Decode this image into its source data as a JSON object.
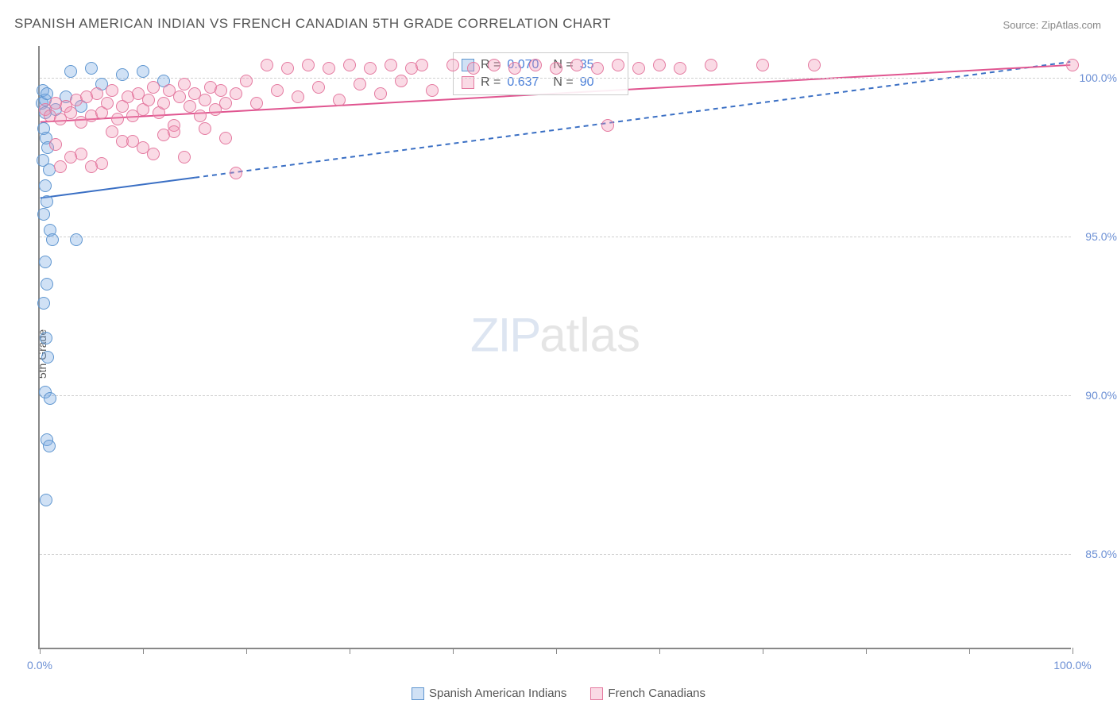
{
  "title": "SPANISH AMERICAN INDIAN VS FRENCH CANADIAN 5TH GRADE CORRELATION CHART",
  "source": "Source: ZipAtlas.com",
  "y_axis_title": "5th Grade",
  "watermark": {
    "zip": "ZIP",
    "atlas": "atlas"
  },
  "chart": {
    "type": "scatter",
    "background_color": "#ffffff",
    "grid_color": "#d0d0d0",
    "axis_color": "#888888",
    "xlim": [
      0,
      100
    ],
    "ylim": [
      82,
      101
    ],
    "x_ticks": [
      0,
      10,
      20,
      30,
      40,
      50,
      60,
      70,
      80,
      90,
      100
    ],
    "x_tick_labels": {
      "0": "0.0%",
      "100": "100.0%"
    },
    "y_ticks": [
      85,
      90,
      95,
      100
    ],
    "y_tick_labels": {
      "85": "85.0%",
      "90": "90.0%",
      "95": "95.0%",
      "100": "100.0%"
    },
    "label_fontsize": 14,
    "label_color": "#6b8fd4",
    "marker_radius": 8,
    "marker_stroke_width": 1.5,
    "series": [
      {
        "name": "Spanish American Indians",
        "fill": "rgba(120,170,225,0.35)",
        "stroke": "#5f96d0",
        "r_value": "0.070",
        "n_value": "35",
        "trend": {
          "x1": 0,
          "y1": 96.2,
          "solid_until_x": 15,
          "x2": 100,
          "y2": 100.5,
          "color": "#3a6fc4",
          "width": 2
        },
        "points": [
          [
            0.2,
            99.2
          ],
          [
            0.3,
            99.6
          ],
          [
            0.5,
            99.3
          ],
          [
            0.7,
            99.5
          ],
          [
            0.5,
            98.9
          ],
          [
            0.4,
            98.4
          ],
          [
            0.6,
            98.1
          ],
          [
            0.8,
            97.8
          ],
          [
            0.3,
            97.4
          ],
          [
            0.9,
            97.1
          ],
          [
            0.5,
            96.6
          ],
          [
            0.7,
            96.1
          ],
          [
            0.4,
            95.7
          ],
          [
            1.0,
            95.2
          ],
          [
            1.2,
            94.9
          ],
          [
            0.5,
            94.2
          ],
          [
            0.7,
            93.5
          ],
          [
            0.4,
            92.9
          ],
          [
            0.6,
            91.8
          ],
          [
            0.8,
            91.2
          ],
          [
            0.5,
            90.1
          ],
          [
            1.0,
            89.9
          ],
          [
            0.7,
            88.6
          ],
          [
            0.9,
            88.4
          ],
          [
            0.6,
            86.7
          ],
          [
            3.0,
            100.2
          ],
          [
            5.0,
            100.3
          ],
          [
            2.5,
            99.4
          ],
          [
            4.0,
            99.1
          ],
          [
            6.0,
            99.8
          ],
          [
            8.0,
            100.1
          ],
          [
            3.5,
            94.9
          ],
          [
            10.0,
            100.2
          ],
          [
            12.0,
            99.9
          ],
          [
            1.5,
            99.0
          ]
        ]
      },
      {
        "name": "French Canadians",
        "fill": "rgba(240,150,180,0.35)",
        "stroke": "#e47aa0",
        "r_value": "0.637",
        "n_value": "90",
        "trend": {
          "x1": 0,
          "y1": 98.6,
          "solid_until_x": 100,
          "x2": 100,
          "y2": 100.4,
          "color": "#e05590",
          "width": 2
        },
        "points": [
          [
            0.5,
            99.0
          ],
          [
            1.0,
            98.8
          ],
          [
            1.5,
            99.2
          ],
          [
            2.0,
            98.7
          ],
          [
            2.5,
            99.1
          ],
          [
            3.0,
            98.9
          ],
          [
            3.5,
            99.3
          ],
          [
            4.0,
            98.6
          ],
          [
            4.5,
            99.4
          ],
          [
            5.0,
            98.8
          ],
          [
            5.5,
            99.5
          ],
          [
            6.0,
            98.9
          ],
          [
            6.5,
            99.2
          ],
          [
            7.0,
            99.6
          ],
          [
            7.5,
            98.7
          ],
          [
            8.0,
            99.1
          ],
          [
            8.5,
            99.4
          ],
          [
            9.0,
            98.8
          ],
          [
            9.5,
            99.5
          ],
          [
            10.0,
            99.0
          ],
          [
            10.5,
            99.3
          ],
          [
            11.0,
            99.7
          ],
          [
            11.5,
            98.9
          ],
          [
            12.0,
            99.2
          ],
          [
            12.5,
            99.6
          ],
          [
            13.0,
            98.5
          ],
          [
            13.5,
            99.4
          ],
          [
            14.0,
            99.8
          ],
          [
            14.5,
            99.1
          ],
          [
            15.0,
            99.5
          ],
          [
            15.5,
            98.8
          ],
          [
            16.0,
            99.3
          ],
          [
            16.5,
            99.7
          ],
          [
            17.0,
            99.0
          ],
          [
            17.5,
            99.6
          ],
          [
            18.0,
            99.2
          ],
          [
            19.0,
            99.5
          ],
          [
            20.0,
            99.9
          ],
          [
            21.0,
            99.2
          ],
          [
            22.0,
            100.4
          ],
          [
            23.0,
            99.6
          ],
          [
            24.0,
            100.3
          ],
          [
            25.0,
            99.4
          ],
          [
            26.0,
            100.4
          ],
          [
            27.0,
            99.7
          ],
          [
            28.0,
            100.3
          ],
          [
            29.0,
            99.3
          ],
          [
            30.0,
            100.4
          ],
          [
            31.0,
            99.8
          ],
          [
            32.0,
            100.3
          ],
          [
            33.0,
            99.5
          ],
          [
            34.0,
            100.4
          ],
          [
            35.0,
            99.9
          ],
          [
            36.0,
            100.3
          ],
          [
            37.0,
            100.4
          ],
          [
            38.0,
            99.6
          ],
          [
            40.0,
            100.4
          ],
          [
            42.0,
            100.3
          ],
          [
            44.0,
            100.4
          ],
          [
            46.0,
            100.3
          ],
          [
            48.0,
            100.4
          ],
          [
            50.0,
            100.3
          ],
          [
            52.0,
            100.4
          ],
          [
            54.0,
            100.3
          ],
          [
            56.0,
            100.4
          ],
          [
            58.0,
            100.3
          ],
          [
            60.0,
            100.4
          ],
          [
            62.0,
            100.3
          ],
          [
            65.0,
            100.4
          ],
          [
            70.0,
            100.4
          ],
          [
            75.0,
            100.4
          ],
          [
            100.0,
            100.4
          ],
          [
            4.0,
            97.6
          ],
          [
            6.0,
            97.3
          ],
          [
            8.0,
            98.0
          ],
          [
            10.0,
            97.8
          ],
          [
            12.0,
            98.2
          ],
          [
            14.0,
            97.5
          ],
          [
            16.0,
            98.4
          ],
          [
            18.0,
            98.1
          ],
          [
            2.0,
            97.2
          ],
          [
            1.5,
            97.9
          ],
          [
            3.0,
            97.5
          ],
          [
            5.0,
            97.2
          ],
          [
            55.0,
            98.5
          ],
          [
            19.0,
            97.0
          ],
          [
            7.0,
            98.3
          ],
          [
            9.0,
            98.0
          ],
          [
            11.0,
            97.6
          ],
          [
            13.0,
            98.3
          ]
        ]
      }
    ]
  },
  "stats_box": {
    "r_label": "R =",
    "n_label": "N ="
  },
  "legend_labels": [
    "Spanish American Indians",
    "French Canadians"
  ]
}
